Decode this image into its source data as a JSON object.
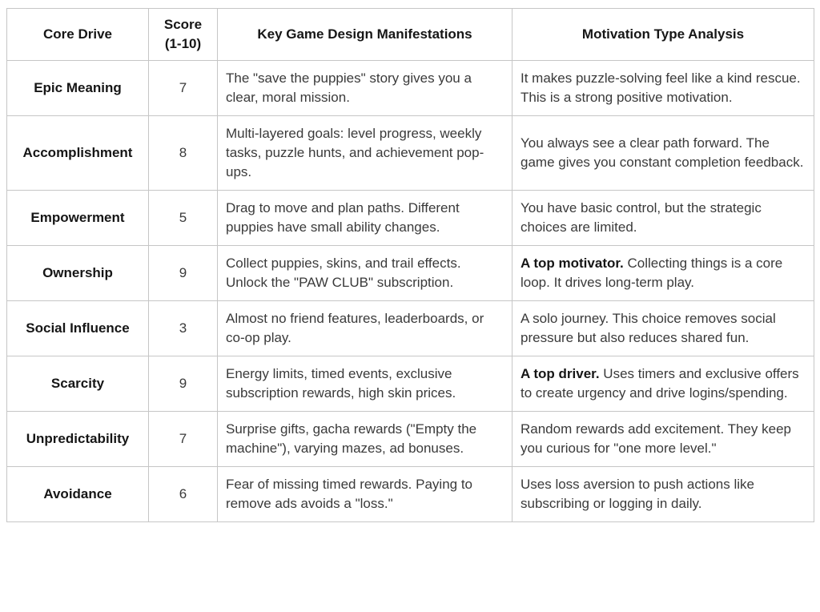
{
  "table": {
    "columns": [
      "Core Drive",
      "Score\n(1-10)",
      "Key Game Design Manifestations",
      "Motivation Type Analysis"
    ],
    "rows": [
      {
        "drive": "Epic Meaning",
        "score": "7",
        "manifestations": "The \"save the puppies\" story gives you a clear, moral mission.",
        "analysis_bold": "",
        "analysis": "It makes puzzle-solving feel like a kind rescue. This is a strong positive motivation."
      },
      {
        "drive": "Accomplishment",
        "score": "8",
        "manifestations": "Multi-layered goals: level progress, weekly tasks, puzzle hunts, and achievement pop-ups.",
        "analysis_bold": "",
        "analysis": "You always see a clear path forward. The game gives you constant completion feedback."
      },
      {
        "drive": "Empowerment",
        "score": "5",
        "manifestations": "Drag to move and plan paths. Different puppies have small ability changes.",
        "analysis_bold": "",
        "analysis": "You have basic control, but the strategic choices are limited."
      },
      {
        "drive": "Ownership",
        "score": "9",
        "manifestations": "Collect puppies, skins, and trail effects. Unlock the \"PAW CLUB\" subscription.",
        "analysis_bold": "A top motivator.",
        "analysis": "Collecting things is a core loop. It drives long-term play."
      },
      {
        "drive": "Social Influence",
        "score": "3",
        "manifestations": "Almost no friend features, leaderboards, or co-op play.",
        "analysis_bold": "",
        "analysis": "A solo journey. This choice removes social pressure but also reduces shared fun."
      },
      {
        "drive": "Scarcity",
        "score": "9",
        "manifestations": "Energy limits, timed events, exclusive subscription rewards, high skin prices.",
        "analysis_bold": "A top driver.",
        "analysis": "Uses timers and exclusive offers to create urgency and drive logins/spending."
      },
      {
        "drive": "Unpredictability",
        "score": "7",
        "manifestations": "Surprise gifts, gacha rewards (\"Empty the machine\"), varying mazes, ad bonuses.",
        "analysis_bold": "",
        "analysis": "Random rewards add excitement. They keep you curious for \"one more level.\""
      },
      {
        "drive": "Avoidance",
        "score": "6",
        "manifestations": "Fear of missing timed rewards. Paying to remove ads avoids a \"loss.\"",
        "analysis_bold": "",
        "analysis": "Uses loss aversion to push actions like subscribing or logging in daily."
      }
    ]
  },
  "colors": {
    "border": "#c6c6c6",
    "heading_text": "#161616",
    "body_text": "#3a3a3a",
    "background": "#ffffff"
  }
}
